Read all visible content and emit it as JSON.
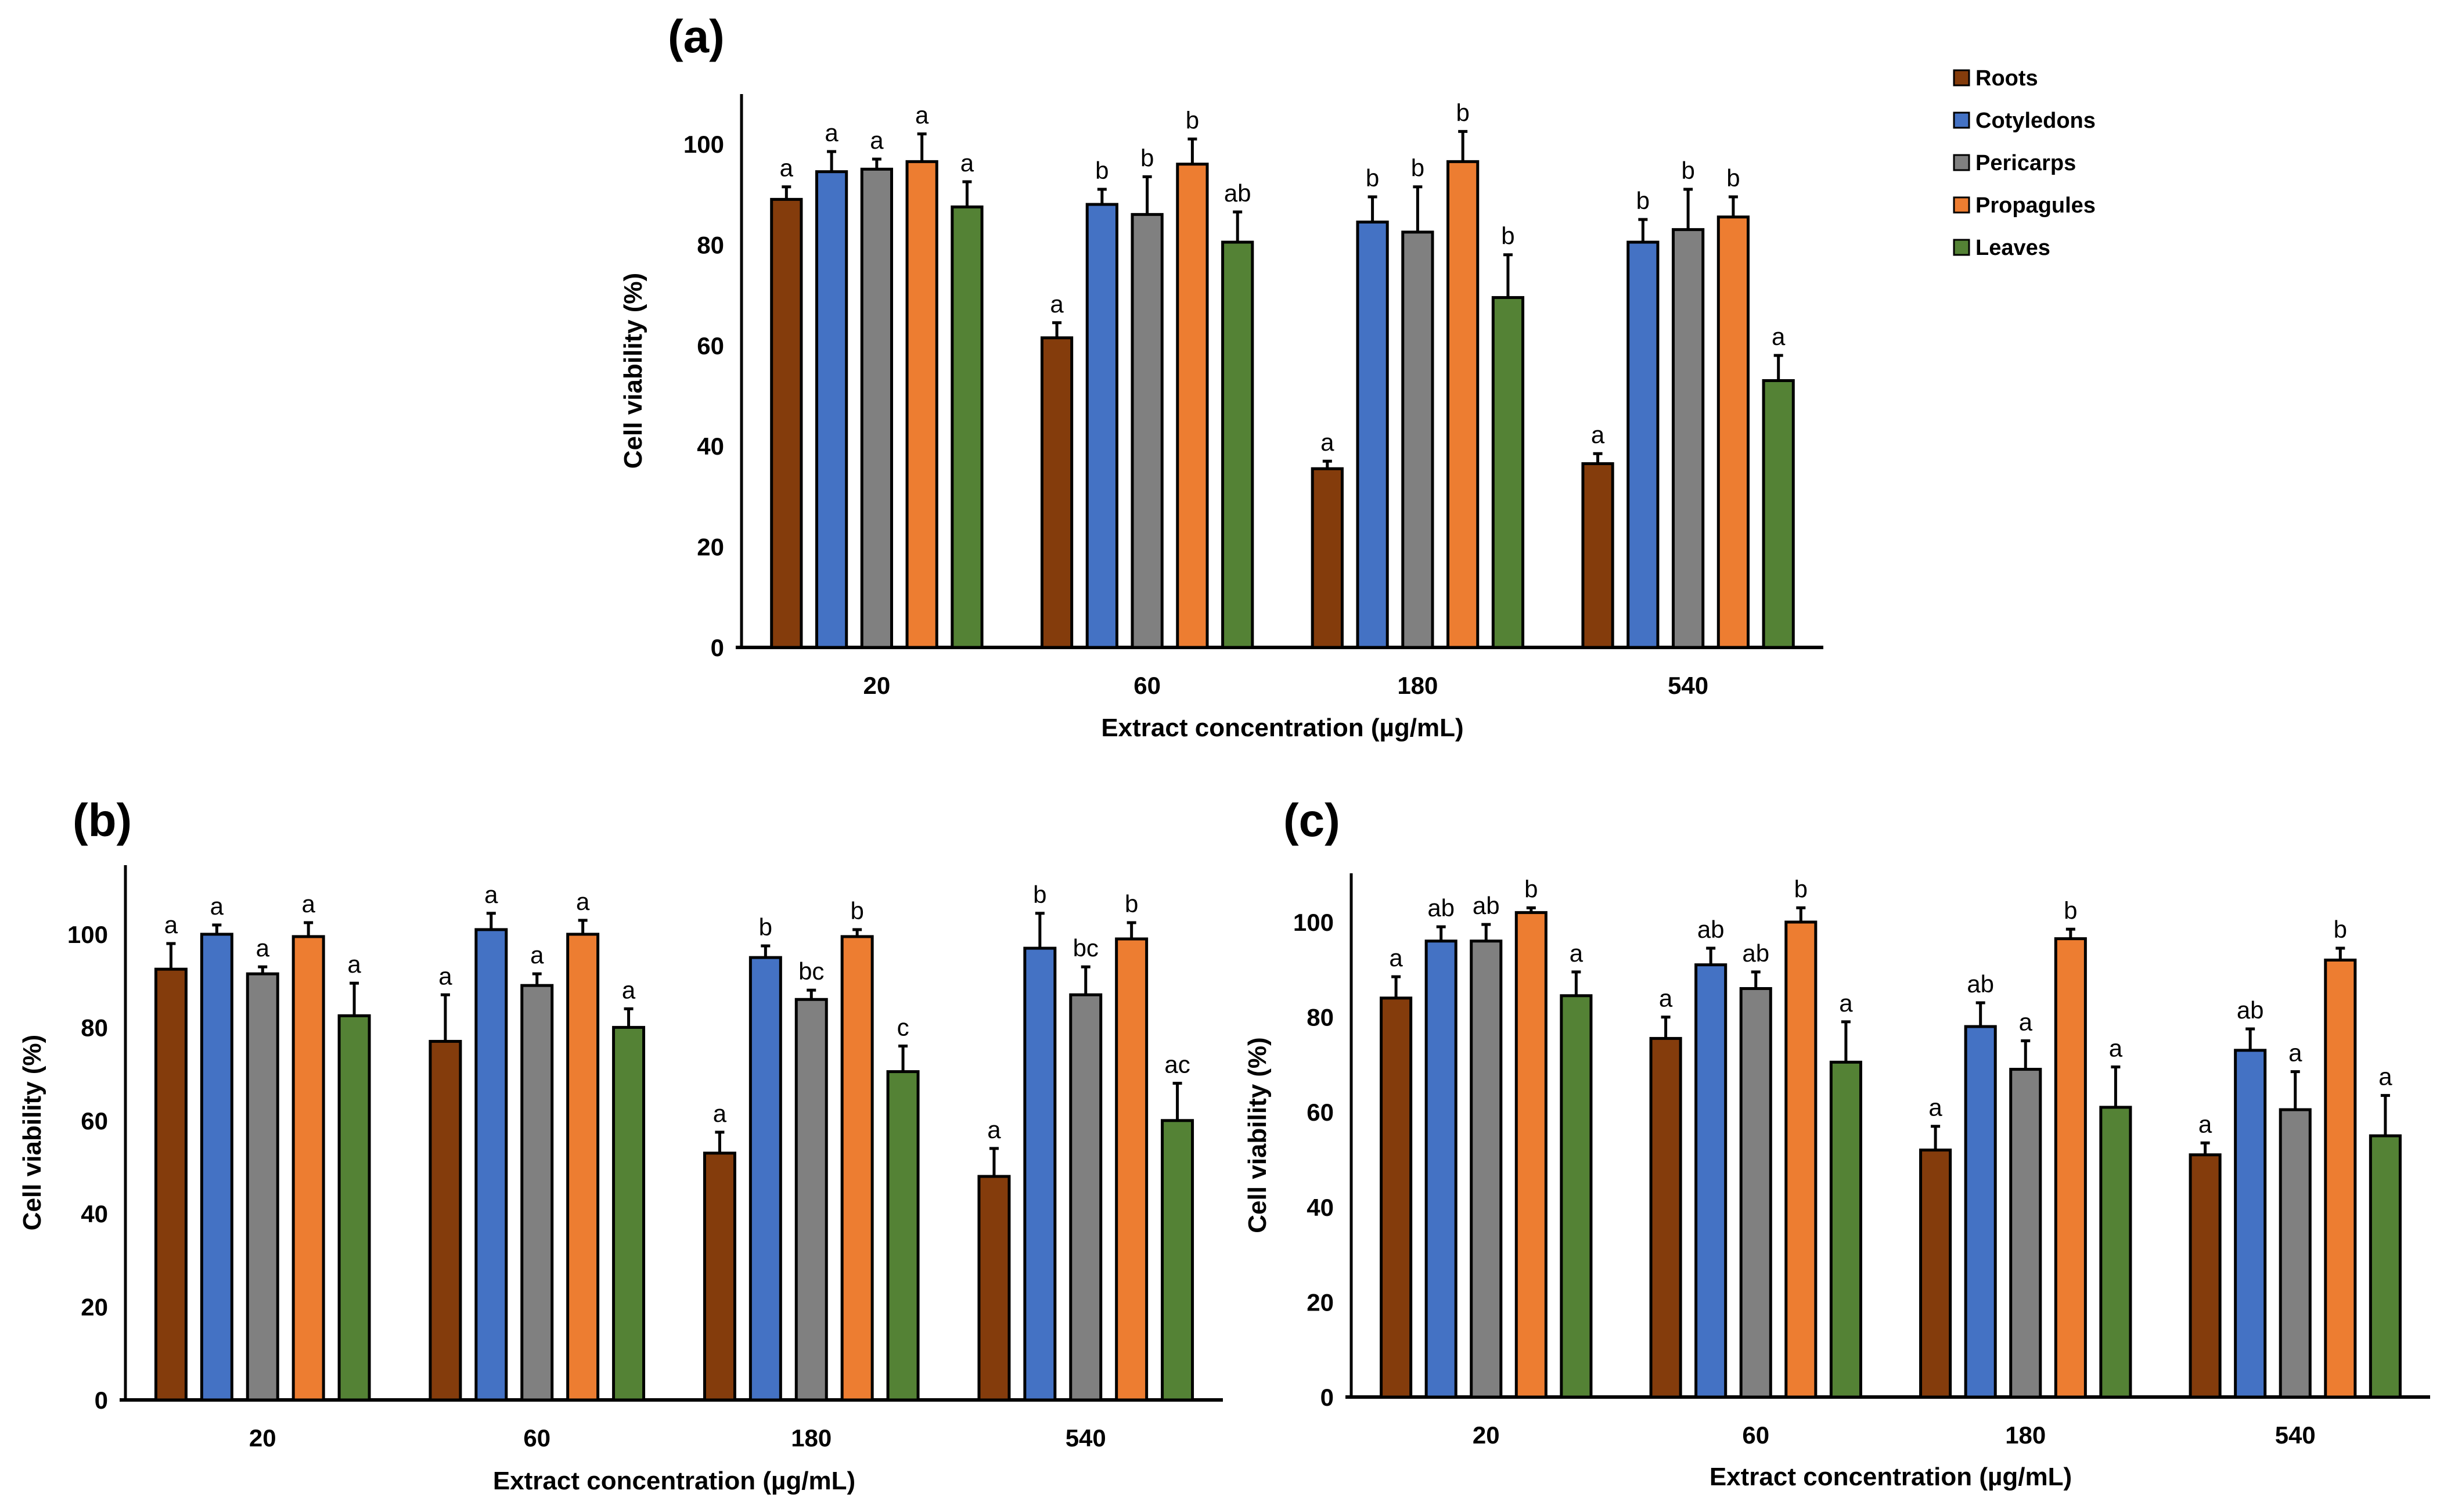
{
  "colors": {
    "Roots": "#843c0c",
    "Cotyledons": "#4472c4",
    "Pericarps": "#808080",
    "Propagules": "#ed7d31",
    "Leaves": "#548235"
  },
  "legend": [
    "Roots",
    "Cotyledons",
    "Pericarps",
    "Propagules",
    "Leaves"
  ],
  "chart_data": [
    {
      "panel": "(a)",
      "type": "bar",
      "categories": [
        "20",
        "60",
        "180",
        "540"
      ],
      "xlabel": "Extract concentration (µg/mL)",
      "ylabel": "Cell viability (%)",
      "ylim": [
        0,
        110
      ],
      "yticks": [
        0,
        20,
        40,
        60,
        80,
        100
      ],
      "legend_position": "top-right",
      "series": [
        {
          "name": "Roots",
          "values": [
            89,
            61.5,
            35.5,
            36.5
          ],
          "errors": [
            2.5,
            3,
            1.5,
            2
          ],
          "letters": [
            "a",
            "a",
            "a",
            "a"
          ]
        },
        {
          "name": "Cotyledons",
          "values": [
            94.5,
            88,
            84.5,
            80.5
          ],
          "errors": [
            4,
            3,
            5,
            4.5
          ],
          "letters": [
            "a",
            "b",
            "b",
            "b"
          ]
        },
        {
          "name": "Pericarps",
          "values": [
            95,
            86,
            82.5,
            83
          ],
          "errors": [
            2,
            7.5,
            9,
            8
          ],
          "letters": [
            "a",
            "b",
            "b",
            "b"
          ]
        },
        {
          "name": "Propagules",
          "values": [
            96.5,
            96,
            96.5,
            85.5
          ],
          "errors": [
            5.5,
            5,
            6,
            4
          ],
          "letters": [
            "a",
            "b",
            "b",
            "b"
          ]
        },
        {
          "name": "Leaves",
          "values": [
            87.5,
            80.5,
            69.5,
            53
          ],
          "errors": [
            5,
            6,
            8.5,
            5
          ],
          "letters": [
            "a",
            "ab",
            "b",
            "a"
          ]
        }
      ]
    },
    {
      "panel": "(b)",
      "type": "bar",
      "categories": [
        "20",
        "60",
        "180",
        "540"
      ],
      "xlabel": "Extract concentration (µg/mL)",
      "ylabel": "Cell viability (%)",
      "ylim": [
        0,
        115
      ],
      "yticks": [
        0,
        20,
        40,
        60,
        80,
        100
      ],
      "series": [
        {
          "name": "Roots",
          "values": [
            92.5,
            77,
            53,
            48
          ],
          "errors": [
            5.5,
            10,
            4.5,
            6
          ],
          "letters": [
            "a",
            "a",
            "a",
            "a"
          ]
        },
        {
          "name": "Cotyledons",
          "values": [
            100,
            101,
            95,
            97
          ],
          "errors": [
            2,
            3.5,
            2.5,
            7.5
          ],
          "letters": [
            "a",
            "a",
            "b",
            "b"
          ]
        },
        {
          "name": "Pericarps",
          "values": [
            91.5,
            89,
            86,
            87
          ],
          "errors": [
            1.5,
            2.5,
            2,
            6
          ],
          "letters": [
            "a",
            "a",
            "bc",
            "bc"
          ]
        },
        {
          "name": "Propagules",
          "values": [
            99.5,
            100,
            99.5,
            99
          ],
          "errors": [
            3,
            3,
            1.5,
            3.5
          ],
          "letters": [
            "a",
            "a",
            "b",
            "b"
          ]
        },
        {
          "name": "Leaves",
          "values": [
            82.5,
            80,
            70.5,
            60
          ],
          "errors": [
            7,
            4,
            5.5,
            8
          ],
          "letters": [
            "a",
            "a",
            "c",
            "ac"
          ]
        }
      ]
    },
    {
      "panel": "(c)",
      "type": "bar",
      "categories": [
        "20",
        "60",
        "180",
        "540"
      ],
      "xlabel": "Extract concentration (µg/mL)",
      "ylabel": "Cell viability (%)",
      "ylim": [
        0,
        110
      ],
      "yticks": [
        0,
        20,
        40,
        60,
        80,
        100
      ],
      "series": [
        {
          "name": "Roots",
          "values": [
            84,
            75.5,
            52,
            51
          ],
          "errors": [
            4.5,
            4.5,
            5,
            2.5
          ],
          "letters": [
            "a",
            "a",
            "a",
            "a"
          ]
        },
        {
          "name": "Cotyledons",
          "values": [
            96,
            91,
            78,
            73
          ],
          "errors": [
            3,
            3.5,
            5,
            4.5
          ],
          "letters": [
            "ab",
            "ab",
            "ab",
            "ab"
          ]
        },
        {
          "name": "Pericarps",
          "values": [
            96,
            86,
            69,
            60.5
          ],
          "errors": [
            3.5,
            3.5,
            6,
            8
          ],
          "letters": [
            "ab",
            "ab",
            "a",
            "a"
          ]
        },
        {
          "name": "Propagules",
          "values": [
            102,
            100,
            96.5,
            92
          ],
          "errors": [
            1,
            3,
            2,
            2.5
          ],
          "letters": [
            "b",
            "b",
            "b",
            "b"
          ]
        },
        {
          "name": "Leaves",
          "values": [
            84.5,
            70.5,
            61,
            55
          ],
          "errors": [
            5,
            8.5,
            8.5,
            8.5
          ],
          "letters": [
            "a",
            "a",
            "a",
            "a"
          ]
        }
      ]
    }
  ]
}
